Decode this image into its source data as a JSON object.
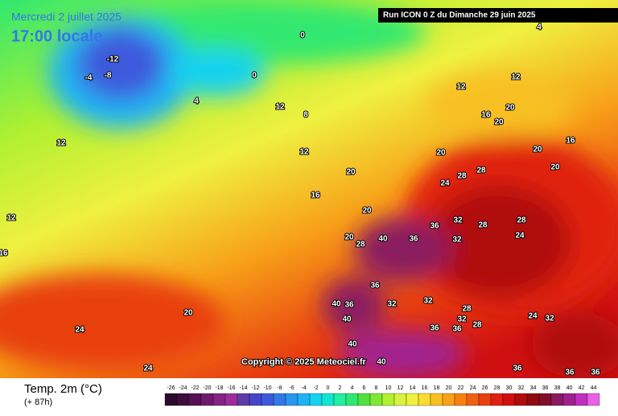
{
  "header": {
    "date": "Mercredi 2 juillet 2025",
    "time": "17:00 locale",
    "run": "Run ICON 0 Z du Dimanche 29 juin 2025"
  },
  "map": {
    "copyright": "Copyright © 2025 Meteociel.fr",
    "labels": [
      -12,
      -4,
      -8,
      0,
      4,
      0,
      4,
      8,
      12,
      12,
      12,
      16,
      20,
      20,
      12,
      16,
      20,
      20,
      24,
      28,
      28,
      20,
      20,
      20,
      16,
      28,
      32,
      36,
      40,
      36,
      32,
      28,
      24,
      28,
      20,
      36,
      40,
      36,
      40,
      32,
      32,
      28,
      32,
      28,
      24,
      32,
      36,
      36,
      40,
      40,
      36,
      36,
      36,
      24,
      24,
      20,
      12,
      16,
      12
    ]
  },
  "legend": {
    "title": "Temp. 2m (°C)",
    "subtitle": "(+ 87h)",
    "ticks": [
      -26,
      -24,
      -22,
      -20,
      -18,
      -16,
      -14,
      -12,
      -10,
      -8,
      -6,
      -4,
      -2,
      0,
      2,
      4,
      6,
      8,
      10,
      12,
      14,
      16,
      18,
      20,
      22,
      24,
      26,
      28,
      30,
      32,
      34,
      36,
      38,
      40,
      42,
      44
    ],
    "colors": [
      "#2b0a2b",
      "#3d0d3d",
      "#551155",
      "#6d1a6d",
      "#852285",
      "#9d2b9d",
      "#5c3ca8",
      "#4646c8",
      "#3c5adc",
      "#3278e6",
      "#2896f0",
      "#1eb4f5",
      "#14d2f0",
      "#10e6d2",
      "#20f0a0",
      "#30e870",
      "#50e040",
      "#80e830",
      "#b0f030",
      "#d8f040",
      "#f0f040",
      "#f8dc30",
      "#f8c020",
      "#f8a018",
      "#f88010",
      "#f06010",
      "#e84010",
      "#e02010",
      "#d01010",
      "#b00c0c",
      "#900a10",
      "#80102a",
      "#8a1a60",
      "#a02090",
      "#c030c0",
      "#e860e8"
    ]
  }
}
